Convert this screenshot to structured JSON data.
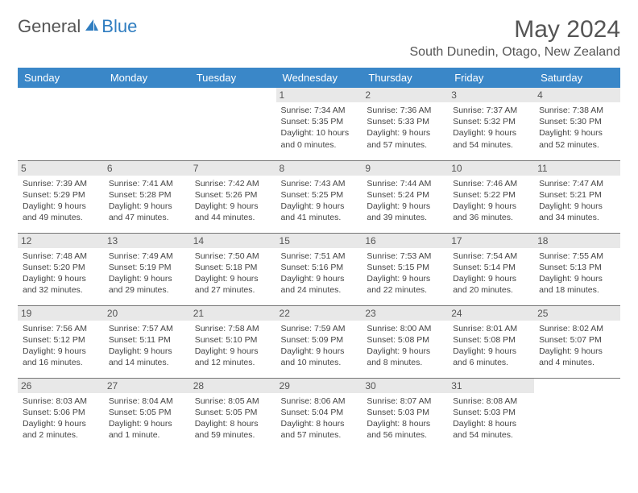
{
  "logo": {
    "text1": "General",
    "text2": "Blue"
  },
  "title": "May 2024",
  "location": "South Dunedin, Otago, New Zealand",
  "daynames": [
    "Sunday",
    "Monday",
    "Tuesday",
    "Wednesday",
    "Thursday",
    "Friday",
    "Saturday"
  ],
  "colors": {
    "header_bg": "#3a87c8",
    "daynum_bg": "#e8e8e8",
    "text": "#444444"
  },
  "weeks": [
    [
      {
        "n": "",
        "sr": "",
        "ss": "",
        "dl": ""
      },
      {
        "n": "",
        "sr": "",
        "ss": "",
        "dl": ""
      },
      {
        "n": "",
        "sr": "",
        "ss": "",
        "dl": ""
      },
      {
        "n": "1",
        "sr": "Sunrise: 7:34 AM",
        "ss": "Sunset: 5:35 PM",
        "dl": "Daylight: 10 hours and 0 minutes."
      },
      {
        "n": "2",
        "sr": "Sunrise: 7:36 AM",
        "ss": "Sunset: 5:33 PM",
        "dl": "Daylight: 9 hours and 57 minutes."
      },
      {
        "n": "3",
        "sr": "Sunrise: 7:37 AM",
        "ss": "Sunset: 5:32 PM",
        "dl": "Daylight: 9 hours and 54 minutes."
      },
      {
        "n": "4",
        "sr": "Sunrise: 7:38 AM",
        "ss": "Sunset: 5:30 PM",
        "dl": "Daylight: 9 hours and 52 minutes."
      }
    ],
    [
      {
        "n": "5",
        "sr": "Sunrise: 7:39 AM",
        "ss": "Sunset: 5:29 PM",
        "dl": "Daylight: 9 hours and 49 minutes."
      },
      {
        "n": "6",
        "sr": "Sunrise: 7:41 AM",
        "ss": "Sunset: 5:28 PM",
        "dl": "Daylight: 9 hours and 47 minutes."
      },
      {
        "n": "7",
        "sr": "Sunrise: 7:42 AM",
        "ss": "Sunset: 5:26 PM",
        "dl": "Daylight: 9 hours and 44 minutes."
      },
      {
        "n": "8",
        "sr": "Sunrise: 7:43 AM",
        "ss": "Sunset: 5:25 PM",
        "dl": "Daylight: 9 hours and 41 minutes."
      },
      {
        "n": "9",
        "sr": "Sunrise: 7:44 AM",
        "ss": "Sunset: 5:24 PM",
        "dl": "Daylight: 9 hours and 39 minutes."
      },
      {
        "n": "10",
        "sr": "Sunrise: 7:46 AM",
        "ss": "Sunset: 5:22 PM",
        "dl": "Daylight: 9 hours and 36 minutes."
      },
      {
        "n": "11",
        "sr": "Sunrise: 7:47 AM",
        "ss": "Sunset: 5:21 PM",
        "dl": "Daylight: 9 hours and 34 minutes."
      }
    ],
    [
      {
        "n": "12",
        "sr": "Sunrise: 7:48 AM",
        "ss": "Sunset: 5:20 PM",
        "dl": "Daylight: 9 hours and 32 minutes."
      },
      {
        "n": "13",
        "sr": "Sunrise: 7:49 AM",
        "ss": "Sunset: 5:19 PM",
        "dl": "Daylight: 9 hours and 29 minutes."
      },
      {
        "n": "14",
        "sr": "Sunrise: 7:50 AM",
        "ss": "Sunset: 5:18 PM",
        "dl": "Daylight: 9 hours and 27 minutes."
      },
      {
        "n": "15",
        "sr": "Sunrise: 7:51 AM",
        "ss": "Sunset: 5:16 PM",
        "dl": "Daylight: 9 hours and 24 minutes."
      },
      {
        "n": "16",
        "sr": "Sunrise: 7:53 AM",
        "ss": "Sunset: 5:15 PM",
        "dl": "Daylight: 9 hours and 22 minutes."
      },
      {
        "n": "17",
        "sr": "Sunrise: 7:54 AM",
        "ss": "Sunset: 5:14 PM",
        "dl": "Daylight: 9 hours and 20 minutes."
      },
      {
        "n": "18",
        "sr": "Sunrise: 7:55 AM",
        "ss": "Sunset: 5:13 PM",
        "dl": "Daylight: 9 hours and 18 minutes."
      }
    ],
    [
      {
        "n": "19",
        "sr": "Sunrise: 7:56 AM",
        "ss": "Sunset: 5:12 PM",
        "dl": "Daylight: 9 hours and 16 minutes."
      },
      {
        "n": "20",
        "sr": "Sunrise: 7:57 AM",
        "ss": "Sunset: 5:11 PM",
        "dl": "Daylight: 9 hours and 14 minutes."
      },
      {
        "n": "21",
        "sr": "Sunrise: 7:58 AM",
        "ss": "Sunset: 5:10 PM",
        "dl": "Daylight: 9 hours and 12 minutes."
      },
      {
        "n": "22",
        "sr": "Sunrise: 7:59 AM",
        "ss": "Sunset: 5:09 PM",
        "dl": "Daylight: 9 hours and 10 minutes."
      },
      {
        "n": "23",
        "sr": "Sunrise: 8:00 AM",
        "ss": "Sunset: 5:08 PM",
        "dl": "Daylight: 9 hours and 8 minutes."
      },
      {
        "n": "24",
        "sr": "Sunrise: 8:01 AM",
        "ss": "Sunset: 5:08 PM",
        "dl": "Daylight: 9 hours and 6 minutes."
      },
      {
        "n": "25",
        "sr": "Sunrise: 8:02 AM",
        "ss": "Sunset: 5:07 PM",
        "dl": "Daylight: 9 hours and 4 minutes."
      }
    ],
    [
      {
        "n": "26",
        "sr": "Sunrise: 8:03 AM",
        "ss": "Sunset: 5:06 PM",
        "dl": "Daylight: 9 hours and 2 minutes."
      },
      {
        "n": "27",
        "sr": "Sunrise: 8:04 AM",
        "ss": "Sunset: 5:05 PM",
        "dl": "Daylight: 9 hours and 1 minute."
      },
      {
        "n": "28",
        "sr": "Sunrise: 8:05 AM",
        "ss": "Sunset: 5:05 PM",
        "dl": "Daylight: 8 hours and 59 minutes."
      },
      {
        "n": "29",
        "sr": "Sunrise: 8:06 AM",
        "ss": "Sunset: 5:04 PM",
        "dl": "Daylight: 8 hours and 57 minutes."
      },
      {
        "n": "30",
        "sr": "Sunrise: 8:07 AM",
        "ss": "Sunset: 5:03 PM",
        "dl": "Daylight: 8 hours and 56 minutes."
      },
      {
        "n": "31",
        "sr": "Sunrise: 8:08 AM",
        "ss": "Sunset: 5:03 PM",
        "dl": "Daylight: 8 hours and 54 minutes."
      },
      {
        "n": "",
        "sr": "",
        "ss": "",
        "dl": ""
      }
    ]
  ]
}
